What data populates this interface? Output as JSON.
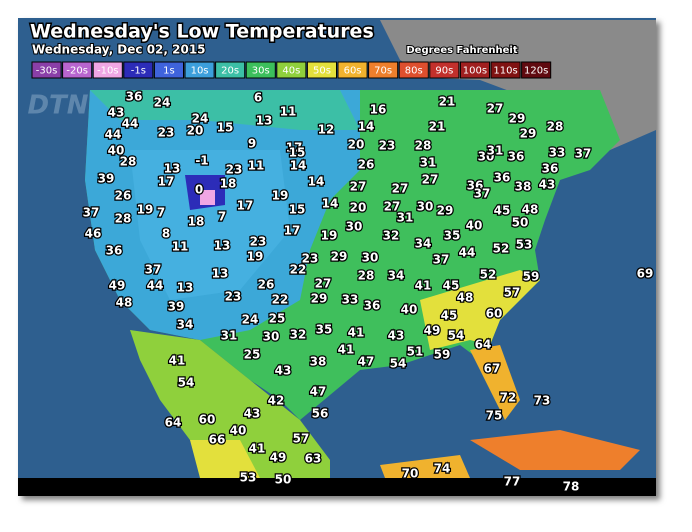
{
  "header": {
    "title": "Wednesday's Low Temperatures",
    "subtitle": "Wednesday, Dec 02, 2015",
    "units": "Degrees Fahrenheit",
    "logo": "DTN"
  },
  "legend": [
    {
      "label": "-30s",
      "color": "#8a3fa8"
    },
    {
      "label": "-20s",
      "color": "#b865cf"
    },
    {
      "label": "-10s",
      "color": "#f0a6e4"
    },
    {
      "label": "-1s",
      "color": "#2c2cb8"
    },
    {
      "label": "1s",
      "color": "#3f63dc"
    },
    {
      "label": "10s",
      "color": "#3c9fdc"
    },
    {
      "label": "20s",
      "color": "#3cbfa6"
    },
    {
      "label": "30s",
      "color": "#3cbf5c"
    },
    {
      "label": "40s",
      "color": "#8fd03c"
    },
    {
      "label": "50s",
      "color": "#e3e03c"
    },
    {
      "label": "60s",
      "color": "#f0b22e"
    },
    {
      "label": "70s",
      "color": "#ee7f2c"
    },
    {
      "label": "80s",
      "color": "#de4f2e"
    },
    {
      "label": "90s",
      "color": "#c2302c"
    },
    {
      "label": "100s",
      "color": "#a01f1f"
    },
    {
      "label": "110s",
      "color": "#801212"
    },
    {
      "label": "120s",
      "color": "#600a10"
    }
  ],
  "temperatures": [
    36,
    24,
    6,
    43,
    11,
    16,
    21,
    27,
    44,
    24,
    13,
    29,
    28,
    44,
    23,
    20,
    15,
    12,
    14,
    21,
    29,
    40,
    9,
    17,
    20,
    23,
    28,
    30,
    31,
    36,
    33,
    37,
    28,
    -1,
    11,
    15,
    26,
    31,
    36,
    13,
    23,
    14,
    39,
    17,
    18,
    14,
    27,
    27,
    27,
    36,
    36,
    38,
    43,
    0,
    37,
    26,
    19,
    37,
    19,
    7,
    17,
    15,
    14,
    20,
    27,
    30,
    29,
    45,
    48,
    28,
    18,
    7,
    31,
    50,
    46,
    8,
    17,
    19,
    30,
    32,
    35,
    40,
    11,
    13,
    23,
    34,
    52,
    53,
    36,
    19,
    29,
    30,
    44,
    37,
    37,
    22,
    23,
    13,
    28,
    34,
    52,
    59,
    69,
    49,
    44,
    13,
    26,
    27,
    41,
    45,
    57,
    48,
    39,
    23,
    22,
    29,
    33,
    36,
    48,
    34,
    24,
    25,
    40,
    60,
    45,
    31,
    30,
    32,
    35,
    41,
    43,
    49,
    54,
    47,
    64,
    41,
    51,
    59,
    54,
    41,
    25,
    38,
    43,
    67,
    54,
    47,
    42,
    72,
    73,
    43,
    56,
    75,
    64,
    60,
    40,
    66,
    57,
    41,
    49,
    63,
    70,
    74,
    53,
    50,
    77,
    78
  ]
}
